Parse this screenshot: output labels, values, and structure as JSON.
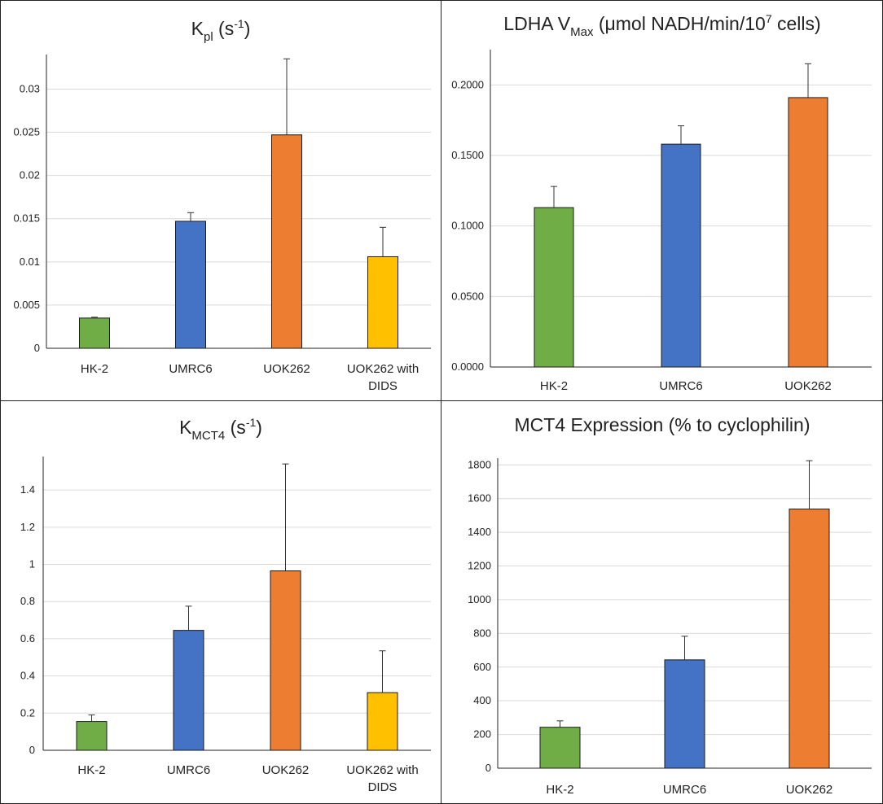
{
  "chart_data": [
    {
      "type": "bar",
      "title": {
        "base": "K",
        "sub": "pl",
        "tail": " (s",
        "sup": "-1",
        "end": ")"
      },
      "categories": [
        [
          "HK-2"
        ],
        [
          "UMRC6"
        ],
        [
          "UOK262"
        ],
        [
          "UOK262 with",
          "DIDS"
        ]
      ],
      "values": [
        0.0035,
        0.0147,
        0.0247,
        0.0106
      ],
      "errors": [
        0.0001,
        0.001,
        0.0088,
        0.0034
      ],
      "colors": [
        "#70ad47",
        "#4472c4",
        "#ed7d31",
        "#ffc000"
      ],
      "ylim": [
        0,
        0.034
      ],
      "ticks": [
        0,
        0.005,
        0.01,
        0.015,
        0.02,
        0.025,
        0.03
      ],
      "tick_labels": [
        "0",
        "0.005",
        "0.01",
        "0.015",
        "0.02",
        "0.025",
        "0.03"
      ],
      "grid": true
    },
    {
      "type": "bar",
      "title": {
        "base": "LDHA V",
        "sub": "Max",
        "tail": " (μmol NADH/min/10",
        "sup": "7",
        "end": " cells)"
      },
      "categories": [
        [
          "HK-2"
        ],
        [
          "UMRC6"
        ],
        [
          "UOK262"
        ]
      ],
      "values": [
        0.113,
        0.158,
        0.191
      ],
      "errors": [
        0.015,
        0.013,
        0.024
      ],
      "colors": [
        "#70ad47",
        "#4472c4",
        "#ed7d31"
      ],
      "ylim": [
        0,
        0.225
      ],
      "ticks": [
        0,
        0.05,
        0.1,
        0.15,
        0.2
      ],
      "tick_labels": [
        "0.0000",
        "0.0500",
        "0.1000",
        "0.1500",
        "0.2000"
      ],
      "grid": true
    },
    {
      "type": "bar",
      "title": {
        "base": "K",
        "sub": "MCT4",
        "tail": " (s",
        "sup": "-1",
        "end": ")"
      },
      "categories": [
        [
          "HK-2"
        ],
        [
          "UMRC6"
        ],
        [
          "UOK262"
        ],
        [
          "UOK262 with",
          "DIDS"
        ]
      ],
      "values": [
        0.155,
        0.645,
        0.965,
        0.31
      ],
      "errors": [
        0.035,
        0.13,
        0.575,
        0.225
      ],
      "colors": [
        "#70ad47",
        "#4472c4",
        "#ed7d31",
        "#ffc000"
      ],
      "ylim": [
        0,
        1.58
      ],
      "ticks": [
        0,
        0.2,
        0.4,
        0.6,
        0.8,
        1.0,
        1.2,
        1.4
      ],
      "tick_labels": [
        "0",
        "0.2",
        "0.4",
        "0.6",
        "0.8",
        "1",
        "1.2",
        "1.4"
      ],
      "grid": true
    },
    {
      "type": "bar",
      "title": {
        "base": "MCT4 Expression (% to cyclophilin)",
        "sub": "",
        "tail": "",
        "sup": "",
        "end": ""
      },
      "categories": [
        [
          "HK-2"
        ],
        [
          "UMRC6"
        ],
        [
          "UOK262"
        ]
      ],
      "values": [
        243,
        643,
        1538
      ],
      "errors": [
        38,
        140,
        287
      ],
      "colors": [
        "#70ad47",
        "#4472c4",
        "#ed7d31"
      ],
      "ylim": [
        0,
        1840
      ],
      "ticks": [
        0,
        200,
        400,
        600,
        800,
        1000,
        1200,
        1400,
        1600,
        1800
      ],
      "tick_labels": [
        "0",
        "200",
        "400",
        "600",
        "800",
        "1000",
        "1200",
        "1400",
        "1600",
        "1800"
      ],
      "grid": true
    }
  ]
}
